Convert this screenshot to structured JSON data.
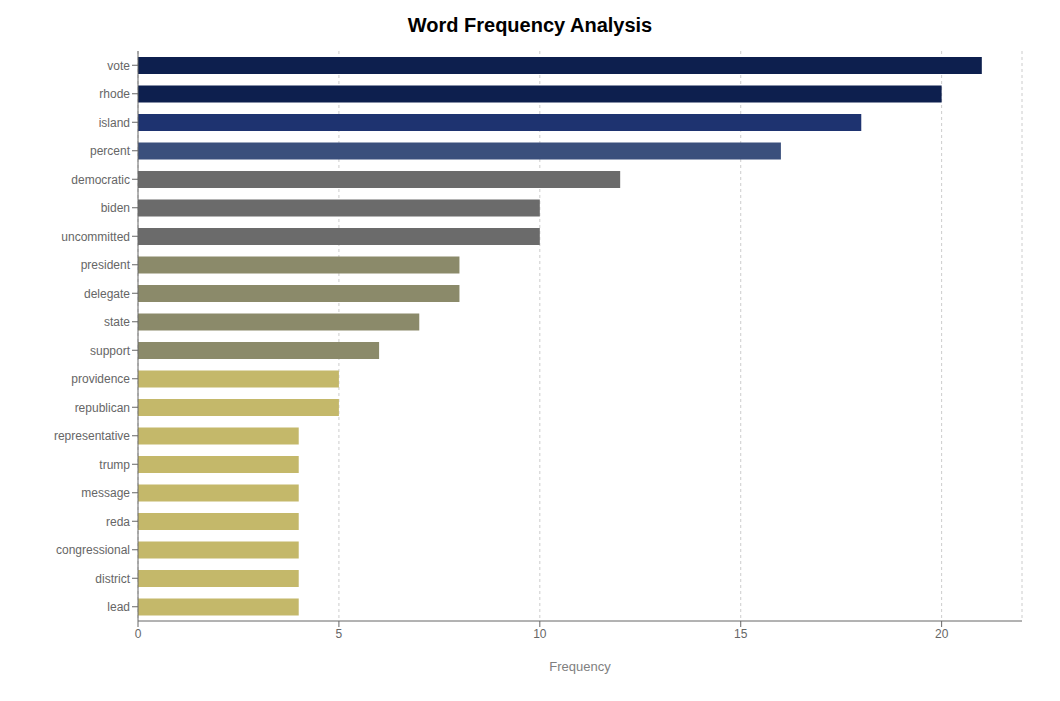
{
  "chart_data": {
    "type": "bar",
    "orientation": "horizontal",
    "title": "Word Frequency Analysis",
    "xlabel": "Frequency",
    "categories": [
      "vote",
      "rhode",
      "island",
      "percent",
      "democratic",
      "biden",
      "uncommitted",
      "president",
      "delegate",
      "state",
      "support",
      "providence",
      "republican",
      "representative",
      "trump",
      "message",
      "reda",
      "congressional",
      "district",
      "lead"
    ],
    "values": [
      21,
      20,
      18,
      16,
      12,
      10,
      10,
      8,
      8,
      7,
      6,
      5,
      5,
      4,
      4,
      4,
      4,
      4,
      4,
      4
    ],
    "colors": [
      "#0d1f4e",
      "#0d1f4e",
      "#1e3370",
      "#3a4f7c",
      "#6b6b6b",
      "#6b6b6b",
      "#6b6b6b",
      "#8b8a6a",
      "#8b8a6a",
      "#8b8a6a",
      "#8b8a6a",
      "#c4b86a",
      "#c4b86a",
      "#c4b86a",
      "#c4b86a",
      "#c4b86a",
      "#c4b86a",
      "#c4b86a",
      "#c4b86a",
      "#c4b86a"
    ],
    "xlim": [
      0,
      22
    ],
    "xticks": [
      0,
      5,
      10,
      15,
      20
    ],
    "grid": true
  }
}
